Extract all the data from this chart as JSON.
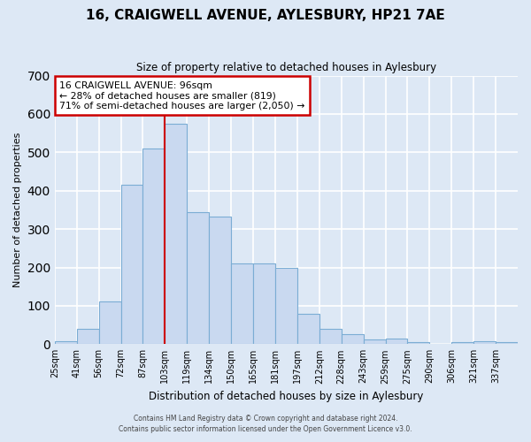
{
  "title": "16, CRAIGWELL AVENUE, AYLESBURY, HP21 7AE",
  "subtitle": "Size of property relative to detached houses in Aylesbury",
  "xlabel": "Distribution of detached houses by size in Aylesbury",
  "ylabel": "Number of detached properties",
  "bar_color": "#c9d9f0",
  "bar_edge_color": "#7badd4",
  "bins": [
    "25sqm",
    "41sqm",
    "56sqm",
    "72sqm",
    "87sqm",
    "103sqm",
    "119sqm",
    "134sqm",
    "150sqm",
    "165sqm",
    "181sqm",
    "197sqm",
    "212sqm",
    "228sqm",
    "243sqm",
    "259sqm",
    "275sqm",
    "290sqm",
    "306sqm",
    "321sqm",
    "337sqm"
  ],
  "values": [
    8,
    40,
    112,
    415,
    510,
    575,
    345,
    332,
    210,
    210,
    200,
    80,
    40,
    25,
    13,
    14,
    5,
    1,
    5,
    7,
    5
  ],
  "vline_pos": 5,
  "vline_color": "#cc0000",
  "ylim": [
    0,
    700
  ],
  "yticks": [
    0,
    100,
    200,
    300,
    400,
    500,
    600,
    700
  ],
  "annotation_title": "16 CRAIGWELL AVENUE: 96sqm",
  "annotation_line1": "← 28% of detached houses are smaller (819)",
  "annotation_line2": "71% of semi-detached houses are larger (2,050) →",
  "annotation_box_color": "#ffffff",
  "annotation_box_edge": "#cc0000",
  "footer1": "Contains HM Land Registry data © Crown copyright and database right 2024.",
  "footer2": "Contains public sector information licensed under the Open Government Licence v3.0.",
  "background_color": "#dde8f5",
  "plot_bg_color": "#dde8f5",
  "grid_color": "#ffffff"
}
